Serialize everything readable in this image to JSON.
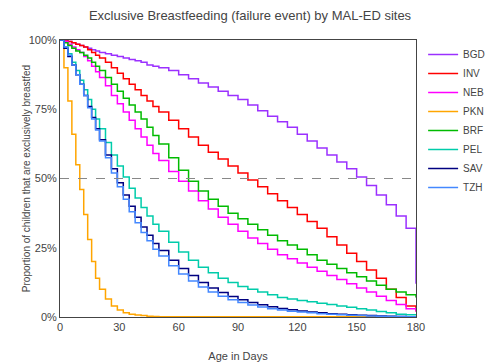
{
  "chart_data": {
    "type": "step",
    "title": "Exclusive Breastfeeding (failure event) by MAL-ED sites",
    "xlabel": "Age in Days",
    "ylabel": "Proportion of children that are exclusively breastfed",
    "xlim": [
      0,
      180
    ],
    "ylim": [
      0,
      1.0
    ],
    "xticks": [
      0,
      30,
      60,
      90,
      120,
      150,
      180
    ],
    "yticks": [
      {
        "value": 0,
        "label": "0%"
      },
      {
        "value": 0.25,
        "label": "25%"
      },
      {
        "value": 0.5,
        "label": "50%"
      },
      {
        "value": 0.75,
        "label": "75%"
      },
      {
        "value": 1.0,
        "label": "100%"
      }
    ],
    "hline": 0.5,
    "grid": false,
    "legend": "right",
    "series": [
      {
        "name": "BGD",
        "color": "#9B30FF",
        "x": [
          0,
          2,
          4,
          6,
          8,
          10,
          12,
          14,
          16,
          18,
          20,
          23,
          26,
          29,
          32,
          35,
          38,
          41,
          44,
          47,
          50,
          55,
          60,
          65,
          70,
          75,
          80,
          85,
          90,
          95,
          100,
          105,
          110,
          115,
          120,
          125,
          130,
          135,
          140,
          145,
          150,
          155,
          160,
          165,
          170,
          175,
          180
        ],
        "values": [
          1.0,
          1.0,
          0.995,
          0.99,
          0.985,
          0.98,
          0.975,
          0.97,
          0.965,
          0.96,
          0.955,
          0.95,
          0.945,
          0.94,
          0.935,
          0.93,
          0.925,
          0.92,
          0.91,
          0.905,
          0.9,
          0.89,
          0.875,
          0.86,
          0.845,
          0.83,
          0.815,
          0.8,
          0.785,
          0.765,
          0.745,
          0.725,
          0.705,
          0.685,
          0.66,
          0.635,
          0.61,
          0.585,
          0.56,
          0.535,
          0.505,
          0.475,
          0.44,
          0.405,
          0.365,
          0.32,
          0.12
        ]
      },
      {
        "name": "INV",
        "color": "#FF0000",
        "x": [
          0,
          2,
          4,
          6,
          8,
          10,
          12,
          14,
          16,
          18,
          20,
          23,
          26,
          29,
          32,
          35,
          38,
          41,
          44,
          47,
          50,
          55,
          60,
          65,
          70,
          75,
          80,
          85,
          90,
          95,
          100,
          105,
          110,
          115,
          120,
          125,
          130,
          135,
          140,
          145,
          150,
          155,
          160,
          165,
          170,
          175,
          180
        ],
        "values": [
          1.0,
          1.0,
          0.995,
          0.99,
          0.985,
          0.98,
          0.975,
          0.965,
          0.955,
          0.945,
          0.935,
          0.92,
          0.9,
          0.88,
          0.86,
          0.84,
          0.82,
          0.8,
          0.78,
          0.76,
          0.74,
          0.71,
          0.68,
          0.65,
          0.62,
          0.595,
          0.57,
          0.545,
          0.52,
          0.495,
          0.47,
          0.445,
          0.42,
          0.395,
          0.37,
          0.345,
          0.32,
          0.29,
          0.26,
          0.23,
          0.2,
          0.17,
          0.14,
          0.1,
          0.07,
          0.04,
          0.02
        ]
      },
      {
        "name": "NEB",
        "color": "#FF00FF",
        "x": [
          0,
          2,
          4,
          6,
          8,
          10,
          12,
          14,
          16,
          18,
          20,
          23,
          26,
          29,
          32,
          35,
          38,
          41,
          44,
          47,
          50,
          55,
          60,
          65,
          70,
          75,
          80,
          85,
          90,
          95,
          100,
          105,
          110,
          115,
          120,
          125,
          130,
          135,
          140,
          145,
          150,
          155,
          160,
          165,
          170,
          175,
          180
        ],
        "values": [
          1.0,
          0.995,
          0.985,
          0.975,
          0.965,
          0.955,
          0.94,
          0.925,
          0.905,
          0.885,
          0.865,
          0.835,
          0.8,
          0.77,
          0.74,
          0.71,
          0.68,
          0.65,
          0.62,
          0.59,
          0.565,
          0.525,
          0.49,
          0.455,
          0.42,
          0.39,
          0.36,
          0.335,
          0.31,
          0.285,
          0.265,
          0.245,
          0.225,
          0.21,
          0.195,
          0.18,
          0.165,
          0.15,
          0.135,
          0.12,
          0.105,
          0.09,
          0.075,
          0.06,
          0.045,
          0.03,
          0.02
        ]
      },
      {
        "name": "PKN",
        "color": "#FFA500",
        "x": [
          0,
          2,
          4,
          6,
          8,
          10,
          12,
          14,
          16,
          18,
          20,
          23,
          26,
          29,
          32,
          35,
          38,
          41,
          44,
          47,
          50,
          55,
          60,
          70,
          80,
          90,
          100,
          120,
          140,
          160,
          180
        ],
        "values": [
          1.0,
          0.9,
          0.78,
          0.66,
          0.55,
          0.46,
          0.37,
          0.28,
          0.2,
          0.14,
          0.1,
          0.065,
          0.04,
          0.025,
          0.015,
          0.01,
          0.007,
          0.005,
          0.003,
          0.002,
          0.001,
          0.001,
          0.001,
          0.001,
          0.001,
          0.001,
          0.001,
          0.001,
          0.001,
          0.001,
          0.001
        ]
      },
      {
        "name": "BRF",
        "color": "#00BB00",
        "x": [
          0,
          2,
          4,
          6,
          8,
          10,
          12,
          14,
          16,
          18,
          20,
          23,
          26,
          29,
          32,
          35,
          38,
          41,
          44,
          47,
          50,
          55,
          60,
          65,
          70,
          75,
          80,
          85,
          90,
          95,
          100,
          105,
          110,
          115,
          120,
          125,
          130,
          135,
          140,
          145,
          150,
          155,
          160,
          165,
          170,
          175,
          180
        ],
        "values": [
          1.0,
          0.99,
          0.98,
          0.97,
          0.96,
          0.955,
          0.945,
          0.935,
          0.92,
          0.905,
          0.89,
          0.865,
          0.84,
          0.815,
          0.79,
          0.765,
          0.74,
          0.715,
          0.685,
          0.655,
          0.625,
          0.575,
          0.53,
          0.49,
          0.455,
          0.425,
          0.4,
          0.375,
          0.355,
          0.335,
          0.315,
          0.295,
          0.275,
          0.26,
          0.245,
          0.225,
          0.205,
          0.19,
          0.175,
          0.16,
          0.145,
          0.13,
          0.115,
          0.1,
          0.09,
          0.08,
          0.07
        ]
      },
      {
        "name": "PEL",
        "color": "#00CCAA",
        "x": [
          0,
          2,
          4,
          6,
          8,
          10,
          12,
          14,
          16,
          18,
          20,
          23,
          26,
          29,
          32,
          35,
          38,
          41,
          44,
          47,
          50,
          55,
          60,
          65,
          70,
          75,
          80,
          85,
          90,
          95,
          100,
          105,
          110,
          115,
          120,
          125,
          130,
          135,
          140,
          145,
          150,
          155,
          160,
          165,
          170,
          175,
          180
        ],
        "values": [
          1.0,
          0.975,
          0.95,
          0.92,
          0.89,
          0.855,
          0.82,
          0.785,
          0.75,
          0.715,
          0.68,
          0.63,
          0.585,
          0.545,
          0.505,
          0.465,
          0.43,
          0.395,
          0.365,
          0.335,
          0.31,
          0.27,
          0.235,
          0.205,
          0.18,
          0.16,
          0.14,
          0.125,
          0.11,
          0.1,
          0.09,
          0.08,
          0.07,
          0.065,
          0.06,
          0.055,
          0.05,
          0.045,
          0.04,
          0.035,
          0.03,
          0.025,
          0.02,
          0.015,
          0.01,
          0.008,
          0.005
        ]
      },
      {
        "name": "SAV",
        "color": "#000080",
        "x": [
          0,
          2,
          4,
          6,
          8,
          10,
          12,
          14,
          16,
          18,
          20,
          23,
          26,
          29,
          32,
          35,
          38,
          41,
          44,
          47,
          50,
          55,
          60,
          65,
          70,
          75,
          80,
          85,
          90,
          95,
          100,
          105,
          110,
          115,
          120,
          125,
          130,
          135,
          140,
          145,
          150,
          155,
          160,
          165,
          170,
          175,
          180
        ],
        "values": [
          1.0,
          0.97,
          0.94,
          0.91,
          0.875,
          0.84,
          0.8,
          0.76,
          0.72,
          0.68,
          0.64,
          0.585,
          0.535,
          0.485,
          0.44,
          0.4,
          0.36,
          0.325,
          0.295,
          0.265,
          0.24,
          0.205,
          0.175,
          0.15,
          0.125,
          0.105,
          0.088,
          0.074,
          0.062,
          0.052,
          0.044,
          0.037,
          0.031,
          0.026,
          0.022,
          0.018,
          0.015,
          0.012,
          0.01,
          0.008,
          0.006,
          0.005,
          0.004,
          0.003,
          0.002,
          0.001,
          0.001
        ]
      },
      {
        "name": "TZH",
        "color": "#4488FF",
        "x": [
          0,
          2,
          4,
          6,
          8,
          10,
          12,
          14,
          16,
          18,
          20,
          23,
          26,
          29,
          32,
          35,
          38,
          41,
          44,
          47,
          50,
          55,
          60,
          65,
          70,
          75,
          80,
          85,
          90,
          95,
          100,
          105,
          110,
          115,
          120,
          125,
          130,
          135,
          140,
          145,
          150,
          155,
          160,
          165,
          170,
          175,
          180
        ],
        "values": [
          1.0,
          0.975,
          0.945,
          0.91,
          0.875,
          0.84,
          0.8,
          0.755,
          0.715,
          0.675,
          0.635,
          0.575,
          0.52,
          0.47,
          0.425,
          0.38,
          0.34,
          0.305,
          0.275,
          0.245,
          0.22,
          0.185,
          0.155,
          0.13,
          0.108,
          0.09,
          0.075,
          0.062,
          0.052,
          0.043,
          0.036,
          0.03,
          0.025,
          0.021,
          0.018,
          0.015,
          0.012,
          0.01,
          0.008,
          0.006,
          0.005,
          0.004,
          0.003,
          0.002,
          0.002,
          0.001,
          0.001
        ]
      }
    ]
  }
}
